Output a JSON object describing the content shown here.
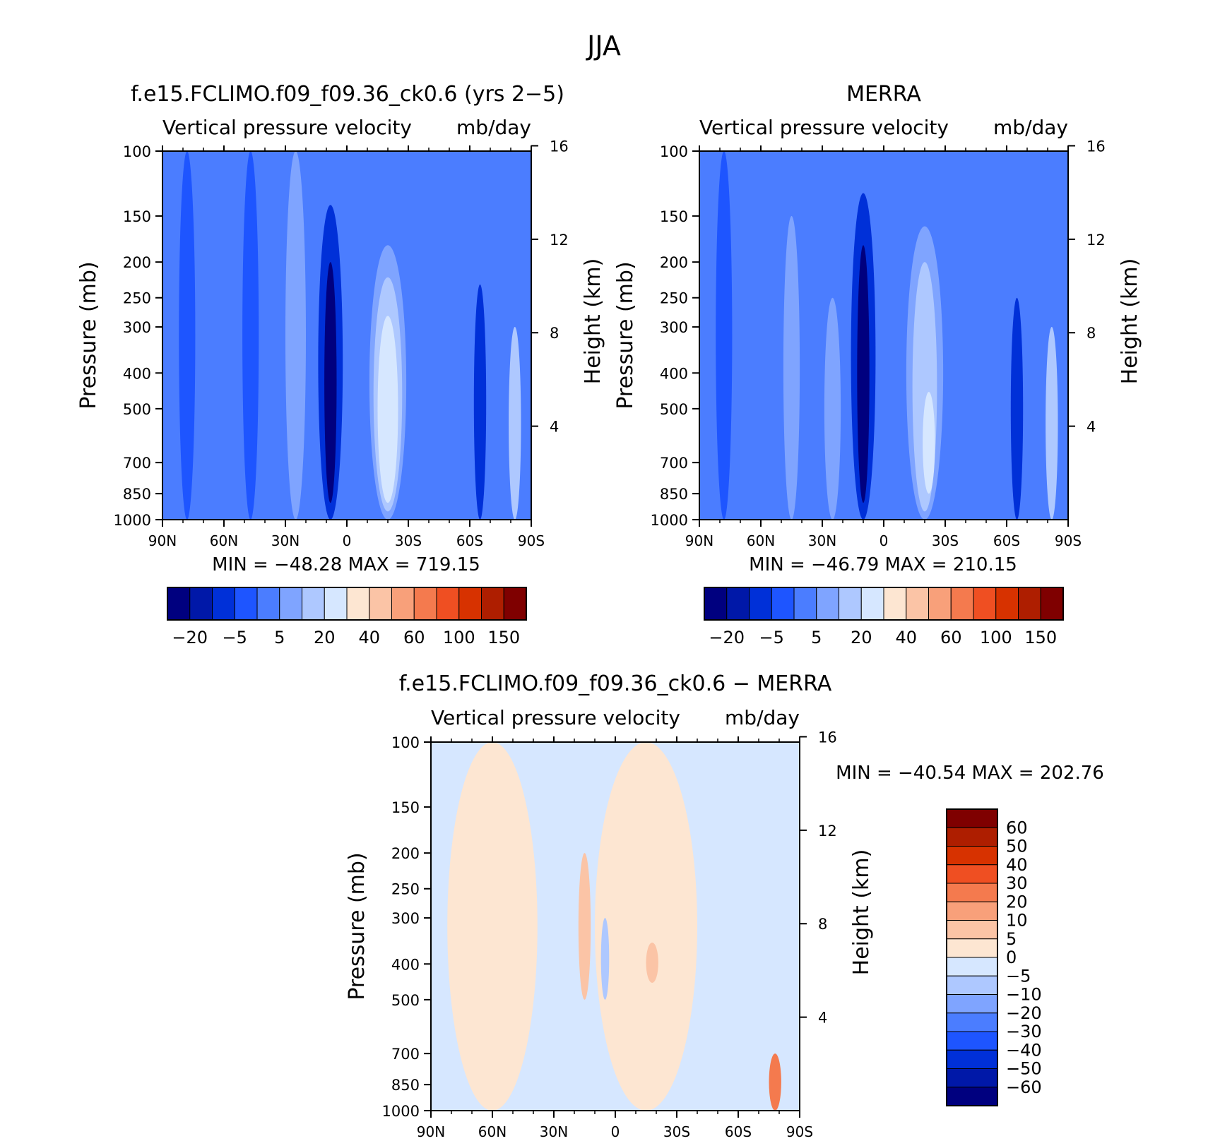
{
  "figure": {
    "title": "JJA"
  },
  "colors": {
    "panel_scale": [
      "#00007f",
      "#0018a8",
      "#0030d8",
      "#1e55ff",
      "#4b7dff",
      "#7fa4ff",
      "#aec8ff",
      "#d6e7ff",
      "#fde6d2",
      "#fbc4a6",
      "#f8a07a",
      "#f47a4e",
      "#ef4f22",
      "#d73200",
      "#ae1e00",
      "#7f0000"
    ],
    "diff_scale": [
      "#00007f",
      "#0018a8",
      "#0030d8",
      "#1e55ff",
      "#4b7dff",
      "#7fa4ff",
      "#aec8ff",
      "#d6e7ff",
      "#fde6d2",
      "#fbc4a6",
      "#f8a07a",
      "#f47a4e",
      "#ef4f22",
      "#d73200",
      "#ae1e00",
      "#7f0000"
    ]
  },
  "chart_data": [
    {
      "type": "heatmap",
      "title": "f.e15.FCLIMO.f09_f09.36_ck0.6 (yrs 2−5)",
      "subtitle_left": "Vertical pressure velocity",
      "subtitle_right": "mb/day",
      "ylabel": "Pressure (mb)",
      "y2label": "Height (km)",
      "x_ticks": [
        "90N",
        "60N",
        "30N",
        "0",
        "30S",
        "60S",
        "90S"
      ],
      "y_ticks": [
        "100",
        "150",
        "200",
        "250",
        "300",
        "400",
        "500",
        "700",
        "850",
        "1000"
      ],
      "y_tick_values": [
        100,
        150,
        200,
        250,
        300,
        400,
        500,
        700,
        850,
        1000
      ],
      "y2_ticks": [
        "16",
        "12",
        "8",
        "4"
      ],
      "y2_tick_values": [
        16,
        12,
        8,
        4
      ],
      "stats": "MIN = −48.28   MAX = 719.15",
      "min": -48.28,
      "max": 719.15,
      "colorbar_labels": [
        "−20",
        "−5",
        "5",
        "20",
        "40",
        "60",
        "100",
        "150"
      ],
      "features": [
        {
          "type": "base",
          "level": 4
        },
        {
          "lat": 78,
          "p_top": 100,
          "p_bot": 1000,
          "half_width": 4,
          "level": 3
        },
        {
          "lat": 47,
          "p_top": 100,
          "p_bot": 1000,
          "half_width": 4,
          "level": 3
        },
        {
          "lat": 25,
          "p_top": 100,
          "p_bot": 1000,
          "half_width": 5,
          "level": 5
        },
        {
          "lat": 8,
          "p_top": 140,
          "p_bot": 1000,
          "half_width": 6,
          "level": 2
        },
        {
          "lat": 8,
          "p_top": 200,
          "p_bot": 900,
          "half_width": 3,
          "level": 0
        },
        {
          "lat": -20,
          "p_top": 180,
          "p_bot": 1000,
          "half_width": 9,
          "level": 5
        },
        {
          "lat": -20,
          "p_top": 220,
          "p_bot": 950,
          "half_width": 7,
          "level": 6
        },
        {
          "lat": -20,
          "p_top": 280,
          "p_bot": 900,
          "half_width": 5,
          "level": 7
        },
        {
          "lat": -65,
          "p_top": 230,
          "p_bot": 1000,
          "half_width": 3,
          "level": 2
        },
        {
          "lat": -82,
          "p_top": 300,
          "p_bot": 1000,
          "half_width": 3,
          "level": 6
        }
      ]
    },
    {
      "type": "heatmap",
      "title": "MERRA",
      "subtitle_left": "Vertical pressure velocity",
      "subtitle_right": "mb/day",
      "ylabel": "Pressure (mb)",
      "y2label": "Height (km)",
      "x_ticks": [
        "90N",
        "60N",
        "30N",
        "0",
        "30S",
        "60S",
        "90S"
      ],
      "y_ticks": [
        "100",
        "150",
        "200",
        "250",
        "300",
        "400",
        "500",
        "700",
        "850",
        "1000"
      ],
      "y_tick_values": [
        100,
        150,
        200,
        250,
        300,
        400,
        500,
        700,
        850,
        1000
      ],
      "y2_ticks": [
        "16",
        "12",
        "8",
        "4"
      ],
      "y2_tick_values": [
        16,
        12,
        8,
        4
      ],
      "stats": "MIN = −46.79   MAX = 210.15",
      "min": -46.79,
      "max": 210.15,
      "colorbar_labels": [
        "−20",
        "−5",
        "5",
        "20",
        "40",
        "60",
        "100",
        "150"
      ],
      "features": [
        {
          "type": "base",
          "level": 4
        },
        {
          "lat": 78,
          "p_top": 100,
          "p_bot": 1000,
          "half_width": 4,
          "level": 3
        },
        {
          "lat": 45,
          "p_top": 150,
          "p_bot": 1000,
          "half_width": 4,
          "level": 5
        },
        {
          "lat": 25,
          "p_top": 250,
          "p_bot": 1000,
          "half_width": 4,
          "level": 5
        },
        {
          "lat": 10,
          "p_top": 130,
          "p_bot": 1000,
          "half_width": 6,
          "level": 2
        },
        {
          "lat": 10,
          "p_top": 180,
          "p_bot": 900,
          "half_width": 3,
          "level": 0
        },
        {
          "lat": -20,
          "p_top": 160,
          "p_bot": 1000,
          "half_width": 9,
          "level": 5
        },
        {
          "lat": -20,
          "p_top": 200,
          "p_bot": 950,
          "half_width": 6,
          "level": 6
        },
        {
          "lat": -22,
          "p_top": 450,
          "p_bot": 850,
          "half_width": 3,
          "level": 7
        },
        {
          "lat": -65,
          "p_top": 250,
          "p_bot": 1000,
          "half_width": 3,
          "level": 2
        },
        {
          "lat": -82,
          "p_top": 300,
          "p_bot": 1000,
          "half_width": 3,
          "level": 6
        }
      ]
    },
    {
      "type": "heatmap",
      "title": "f.e15.FCLIMO.f09_f09.36_ck0.6 − MERRA",
      "subtitle_left": "Vertical pressure velocity",
      "subtitle_right": "mb/day",
      "ylabel": "Pressure (mb)",
      "y2label": "Height (km)",
      "x_ticks": [
        "90N",
        "60N",
        "30N",
        "0",
        "30S",
        "60S",
        "90S"
      ],
      "y_ticks": [
        "100",
        "150",
        "200",
        "250",
        "300",
        "400",
        "500",
        "700",
        "850",
        "1000"
      ],
      "y_tick_values": [
        100,
        150,
        200,
        250,
        300,
        400,
        500,
        700,
        850,
        1000
      ],
      "y2_ticks": [
        "16",
        "12",
        "8",
        "4"
      ],
      "y2_tick_values": [
        16,
        12,
        8,
        4
      ],
      "stats": "MIN = −40.54   MAX = 202.76",
      "min": -40.54,
      "max": 202.76,
      "colorbar_labels": [
        "60",
        "50",
        "40",
        "30",
        "20",
        "10",
        "5",
        "0",
        "−5",
        "−10",
        "−20",
        "−30",
        "−40",
        "−50",
        "−60"
      ],
      "features": [
        {
          "type": "base",
          "level": 7
        },
        {
          "lat": 60,
          "p_top": 100,
          "p_bot": 1000,
          "half_width": 22,
          "level": 8
        },
        {
          "lat": -15,
          "p_top": 100,
          "p_bot": 1000,
          "half_width": 25,
          "level": 8
        },
        {
          "lat": 15,
          "p_top": 200,
          "p_bot": 500,
          "half_width": 3,
          "level": 9
        },
        {
          "lat": -18,
          "p_top": 350,
          "p_bot": 450,
          "half_width": 3,
          "level": 9
        },
        {
          "lat": 5,
          "p_top": 300,
          "p_bot": 500,
          "half_width": 2,
          "level": 6
        },
        {
          "lat": -78,
          "p_top": 700,
          "p_bot": 1000,
          "half_width": 3,
          "level": 11
        }
      ]
    }
  ]
}
